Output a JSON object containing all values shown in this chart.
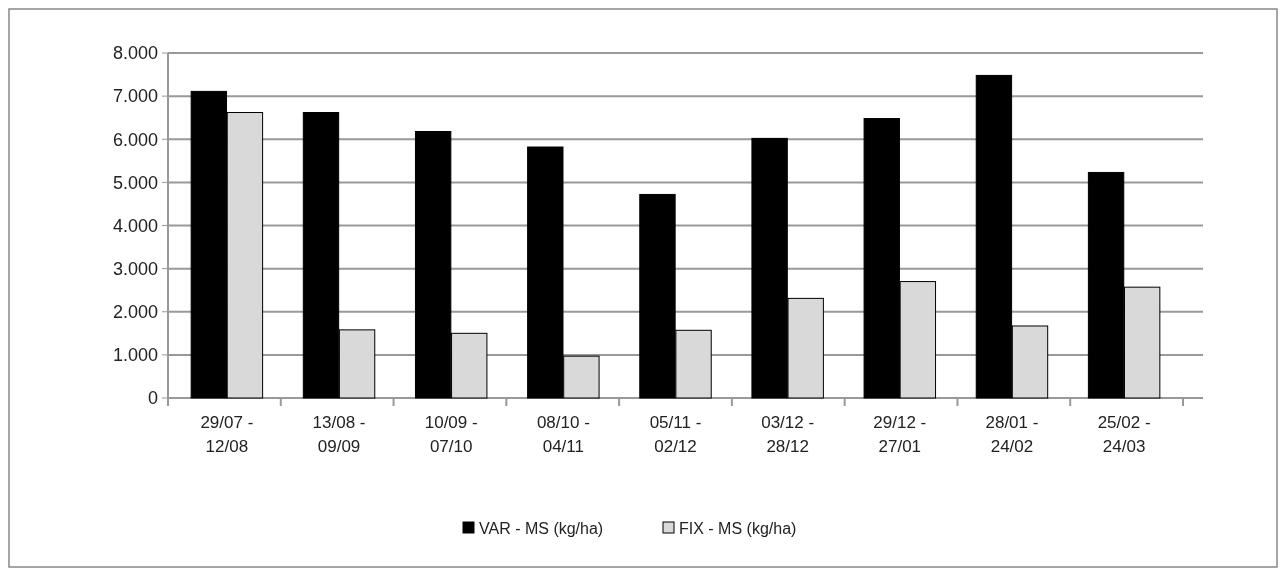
{
  "chart_data": {
    "type": "bar",
    "categories": [
      "29/07 - 12/08",
      "13/08 - 09/09",
      "10/09 - 07/10",
      "08/10 - 04/11",
      "05/11 - 02/12",
      "03/12 - 28/12",
      "29/12 - 27/01",
      "28/01 - 24/02",
      "25/02 - 24/03"
    ],
    "series": [
      {
        "name": "VAR - MS (kg/ha)",
        "color": "#000000",
        "values": [
          7110,
          6620,
          6180,
          5820,
          4720,
          6020,
          6480,
          7480,
          5230
        ]
      },
      {
        "name": "FIX - MS (kg/ha)",
        "color": "#d9d9d9",
        "values": [
          6620,
          1580,
          1500,
          970,
          1570,
          2310,
          2700,
          1670,
          2570
        ]
      }
    ],
    "ylim": [
      0,
      8000
    ],
    "yticks": [
      {
        "value": 0,
        "label": "0"
      },
      {
        "value": 1000,
        "label": "1.000"
      },
      {
        "value": 2000,
        "label": "2.000"
      },
      {
        "value": 3000,
        "label": "3.000"
      },
      {
        "value": 4000,
        "label": "4.000"
      },
      {
        "value": 5000,
        "label": "5.000"
      },
      {
        "value": 6000,
        "label": "6.000"
      },
      {
        "value": 7000,
        "label": "7.000"
      },
      {
        "value": 8000,
        "label": "8.000"
      }
    ],
    "grid": "y",
    "legend": "bottom"
  }
}
